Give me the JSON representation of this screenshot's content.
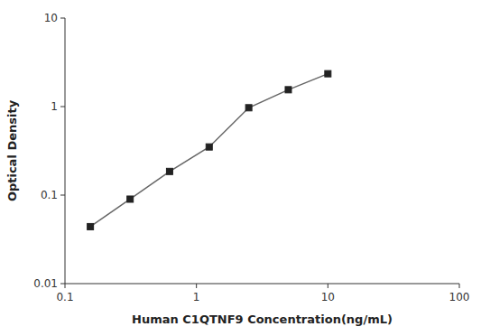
{
  "chart_data": {
    "type": "line",
    "x": [
      0.156,
      0.313,
      0.625,
      1.25,
      2.5,
      5.0,
      10.0
    ],
    "values": [
      0.044,
      0.09,
      0.185,
      0.35,
      0.97,
      1.55,
      2.35
    ],
    "xlabel": "Human C1QTNF9 Concentration(ng/mL)",
    "ylabel": "Optical Density",
    "xlim": [
      0.1,
      100
    ],
    "ylim": [
      0.01,
      10
    ],
    "xticks": [
      0.1,
      1,
      10,
      100
    ],
    "yticks": [
      0.01,
      0.1,
      1,
      10
    ],
    "log": true,
    "grid": false,
    "color": "#666666",
    "marker": "square"
  }
}
